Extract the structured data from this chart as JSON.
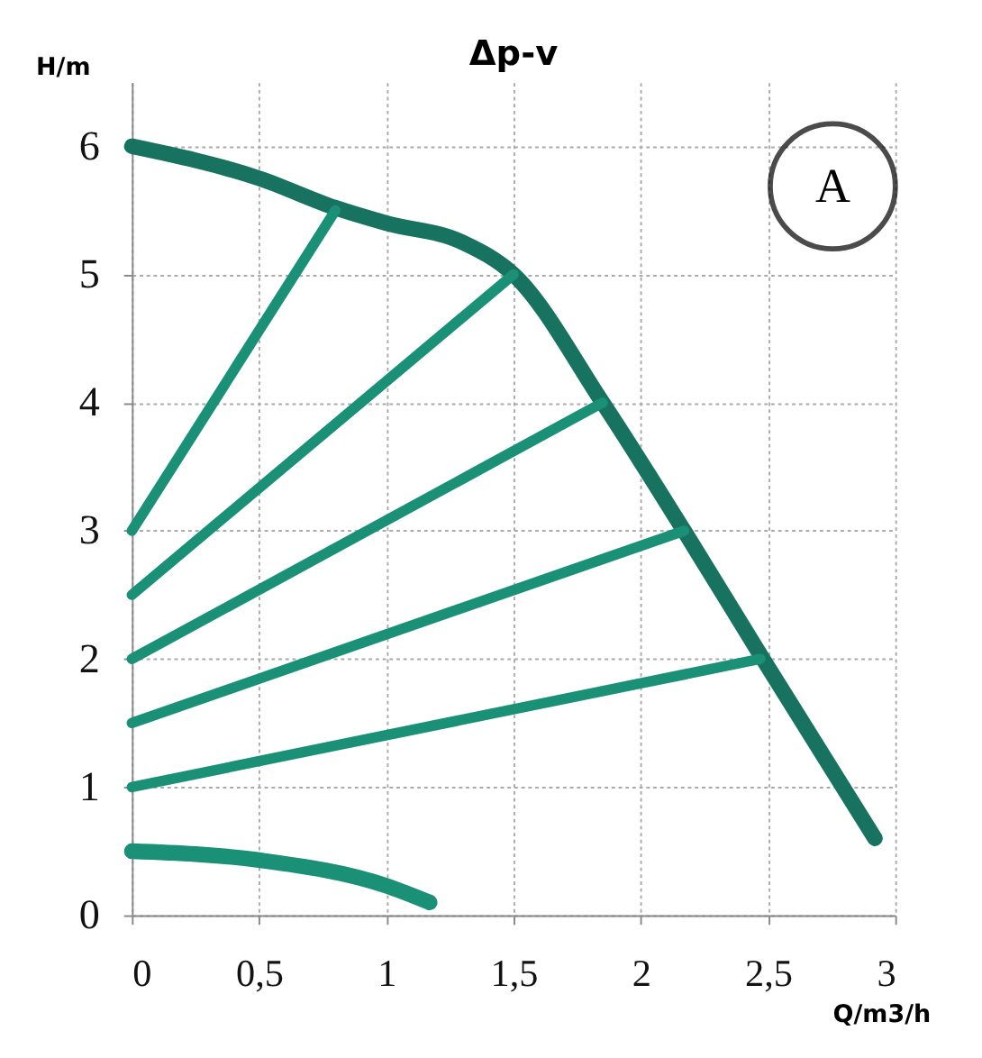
{
  "chart_data": {
    "type": "line",
    "title": "Δp-v",
    "xlabel": "Q/m3/h",
    "ylabel": "H/m",
    "annotations": [
      "A"
    ],
    "series": [
      {
        "color": "#17735f",
        "x": [
          0,
          0.5,
          0.8,
          1.0,
          1.3,
          1.5,
          1.85,
          2.17,
          2.48,
          2.92
        ],
        "values": [
          6,
          5.75,
          5.52,
          5.4,
          5.25,
          5.0,
          4.0,
          3.0,
          2.0,
          0.6
        ]
      },
      {
        "color": "#1a9077",
        "x": [
          0,
          0.8
        ],
        "values": [
          3,
          5.5
        ]
      },
      {
        "color": "#1a9077",
        "x": [
          0,
          1.5
        ],
        "values": [
          2.5,
          5.0
        ]
      },
      {
        "color": "#1a9077",
        "x": [
          0,
          1.85
        ],
        "values": [
          2,
          4.0
        ]
      },
      {
        "color": "#1a9077",
        "x": [
          0,
          2.17
        ],
        "values": [
          1.5,
          3.0
        ]
      },
      {
        "color": "#1a9077",
        "x": [
          0,
          2.47
        ],
        "values": [
          1,
          2.0
        ]
      },
      {
        "color": "#1a9077",
        "x": [
          0,
          0.5,
          1.0,
          1.17
        ],
        "values": [
          0.5,
          0.43,
          0.23,
          0.1
        ]
      }
    ],
    "xlim": [
      0,
      3
    ],
    "ylim": [
      0,
      6.5
    ],
    "xticks": [
      0,
      {
        "value": 0.5,
        "label": "0,5"
      },
      1,
      {
        "value": 1.5,
        "label": "1,5"
      },
      2,
      {
        "value": 2.5,
        "label": "2,5"
      },
      3
    ],
    "yticks": [
      0,
      1,
      2,
      3,
      4,
      5,
      6
    ],
    "grid": true,
    "marker": "none",
    "line_style": "solid"
  }
}
